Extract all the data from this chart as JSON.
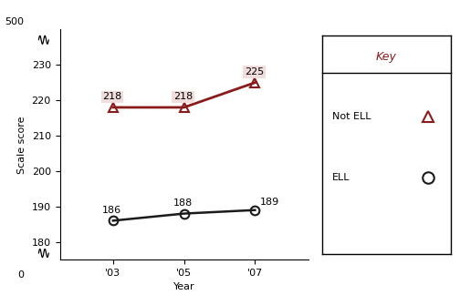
{
  "years": [
    2003,
    2005,
    2007
  ],
  "year_labels": [
    "'03",
    "'05",
    "'07"
  ],
  "not_ell_values": [
    218,
    218,
    225
  ],
  "ell_values": [
    186,
    188,
    189
  ],
  "not_ell_color": "#8B1A1A",
  "ell_color": "#1a1a1a",
  "ylabel": "Scale score",
  "xlabel": "Year",
  "key_title": "Key",
  "key_not_ell_label": "Not ELL",
  "key_ell_label": "ELL",
  "not_ell_annotations": [
    "218",
    "218",
    "225"
  ],
  "ell_annotations": [
    "186",
    "188",
    "189"
  ],
  "annotation_box_color": "#f0d8d8"
}
